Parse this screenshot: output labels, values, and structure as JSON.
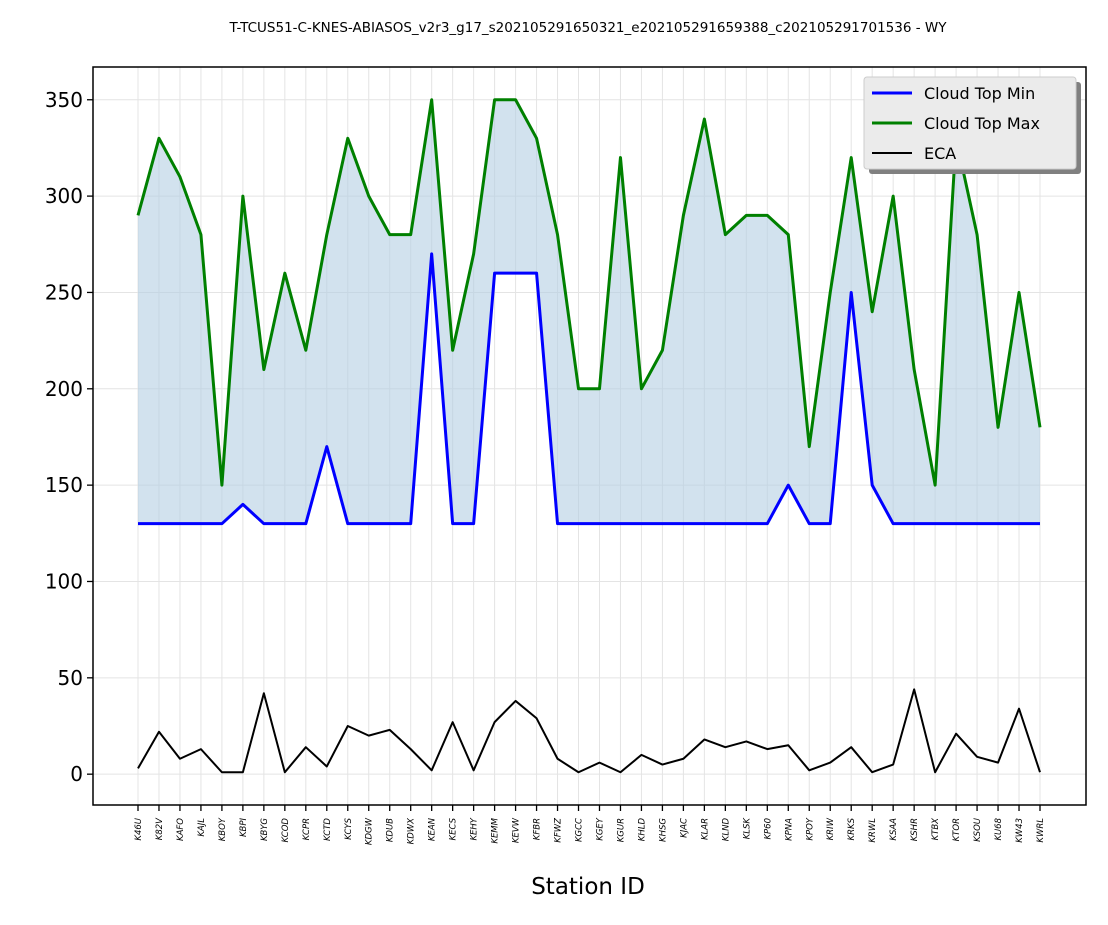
{
  "chart_data": {
    "type": "line",
    "title": "T-TCUS51-C-KNES-ABIASOS_v2r3_g17_s202105291650321_e202105291659388_c202105291701536 - WY",
    "xlabel": "Station ID",
    "ylabel": "",
    "ylim": [
      -16,
      367
    ],
    "yticks": [
      0,
      50,
      100,
      150,
      200,
      250,
      300,
      350
    ],
    "grid": true,
    "legend_position": "top-right",
    "categories": [
      "K46U",
      "K82V",
      "KAFO",
      "KAJL",
      "KBOY",
      "KBPI",
      "KBYG",
      "KCOD",
      "KCPR",
      "KCTD",
      "KCYS",
      "KDGW",
      "KDUB",
      "KDWX",
      "KEAN",
      "KECS",
      "KEHY",
      "KEMM",
      "KEVW",
      "KFBR",
      "KFWZ",
      "KGCC",
      "KGEY",
      "KGUR",
      "KHLD",
      "KHSG",
      "KJAC",
      "KLAR",
      "KLND",
      "KLSK",
      "KP60",
      "KPNA",
      "KPOY",
      "KRIW",
      "KRKS",
      "KRWL",
      "KSAA",
      "KSHR",
      "KTBX",
      "KTOR",
      "KSOU",
      "KU68",
      "KW43",
      "KWRL"
    ],
    "series": [
      {
        "name": "Cloud Top Min",
        "color": "#0000ff",
        "values": [
          130,
          130,
          130,
          130,
          130,
          140,
          130,
          130,
          130,
          170,
          130,
          130,
          130,
          130,
          270,
          130,
          130,
          260,
          260,
          260,
          130,
          130,
          130,
          130,
          130,
          130,
          130,
          130,
          130,
          130,
          130,
          150,
          130,
          130,
          250,
          150,
          130,
          130,
          130,
          130,
          130,
          130,
          130,
          130
        ]
      },
      {
        "name": "Cloud Top Max",
        "color": "#008000",
        "values": [
          290,
          330,
          310,
          280,
          150,
          300,
          210,
          260,
          220,
          280,
          330,
          300,
          280,
          280,
          350,
          220,
          270,
          350,
          350,
          330,
          280,
          200,
          200,
          320,
          200,
          220,
          290,
          340,
          280,
          290,
          290,
          280,
          170,
          250,
          320,
          240,
          300,
          210,
          150,
          330,
          280,
          180,
          250,
          180
        ]
      },
      {
        "name": "ECA",
        "color": "#000000",
        "values": [
          3,
          22,
          8,
          13,
          1,
          1,
          42,
          1,
          14,
          4,
          25,
          20,
          23,
          13,
          2,
          27,
          2,
          27,
          38,
          29,
          8,
          1,
          6,
          1,
          10,
          5,
          8,
          18,
          14,
          17,
          13,
          15,
          2,
          6,
          14,
          1,
          5,
          44,
          1,
          21,
          9,
          6,
          34,
          1
        ]
      }
    ],
    "fill_between": {
      "lower": "Cloud Top Min",
      "upper": "Cloud Top Max",
      "color": "#b4cfe2"
    }
  }
}
